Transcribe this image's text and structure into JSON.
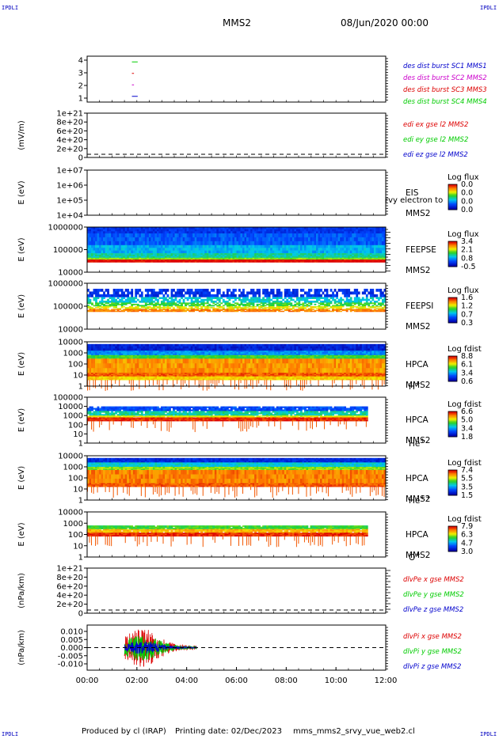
{
  "corner_label": "IPDLI",
  "header": {
    "spacecraft": "MMS2",
    "date_time": "08/Jun/2020 00:00"
  },
  "footer": {
    "produced_by": "Produced by cl (IRAP)",
    "printing_date": "Printing date: 02/Dec/2023",
    "script_name": "mms_mms2_srvy_vue_web2.cl"
  },
  "colors": {
    "series_blue": "#0000cc",
    "series_red": "#dd0000",
    "series_green": "#00cc00",
    "series_magenta": "#cc00cc",
    "label_blue": "#000099"
  },
  "chart_data": [
    {
      "type": "line",
      "title": "",
      "ylabel": "",
      "ylim": [
        0.5,
        4.5
      ],
      "yticks": [
        "4",
        "3",
        "2",
        "1"
      ],
      "legend": [
        {
          "text": "des dist burst SC1 MMS1",
          "color": "#0000cc"
        },
        {
          "text": "des dist burst SC2 MMS2",
          "color": "#cc00cc"
        },
        {
          "text": "des dist burst SC3 MMS3",
          "color": "#dd0000"
        },
        {
          "text": "des dist burst SC4 MMS4",
          "color": "#00cc00"
        }
      ],
      "series": [
        {
          "name": "des dist burst SC1 MMS1",
          "x": [
            1.8,
            2.0
          ],
          "y": [
            1,
            1
          ]
        },
        {
          "name": "des dist burst SC2 MMS2",
          "x": [
            1.8,
            1.85
          ],
          "y": [
            2,
            2
          ]
        },
        {
          "name": "des dist burst SC3 MMS3",
          "x": [
            1.8,
            1.85
          ],
          "y": [
            3,
            3
          ]
        },
        {
          "name": "des dist burst SC4 MMS4",
          "x": [
            1.8,
            2.0
          ],
          "y": [
            4,
            4
          ]
        }
      ]
    },
    {
      "type": "line",
      "ylabel": "(mV/m)",
      "yticks": [
        "1e+21",
        "8e+20",
        "6e+20",
        "4e+20",
        "2e+20",
        "0"
      ],
      "legend": [
        {
          "text": "edi ex gse l2 MMS2",
          "color": "#dd0000"
        },
        {
          "text": "edi ey gse l2 MMS2",
          "color": "#00cc00"
        },
        {
          "text": "edi ez gse l2 MMS2",
          "color": "#0000cc"
        }
      ],
      "series": []
    },
    {
      "type": "heatmap",
      "ylabel": "E (eV)",
      "yticks": [
        "1e+07",
        "1e+06",
        "1e+05",
        "1e+04"
      ],
      "instrument": "EIS",
      "spacecraft": "MMS2",
      "species": "",
      "overlay_text": "rvy electron to",
      "colorbar_title": "Log flux",
      "colorbar_ticks": [
        "0.0",
        "0.0",
        "0.0",
        "0.0"
      ]
    },
    {
      "type": "heatmap",
      "ylabel": "E (eV)",
      "yticks": [
        "1000000",
        "100000",
        "10000"
      ],
      "instrument": "FEEPSE",
      "spacecraft": "MMS2",
      "species": "",
      "colorbar_title": "Log flux",
      "colorbar_ticks": [
        "3.4",
        "2.1",
        "0.8",
        "-0.5"
      ]
    },
    {
      "type": "heatmap",
      "ylabel": "E (eV)",
      "yticks": [
        "1000000",
        "100000",
        "10000"
      ],
      "instrument": "FEEPSI",
      "spacecraft": "MMS2",
      "species": "",
      "colorbar_title": "Log flux",
      "colorbar_ticks": [
        "1.6",
        "1.2",
        "0.7",
        "0.3"
      ]
    },
    {
      "type": "heatmap",
      "ylabel": "E (eV)",
      "yticks": [
        "10000",
        "1000",
        "100",
        "10",
        "1"
      ],
      "instrument": "HPCA",
      "spacecraft": "MMS2",
      "species_base": "H",
      "species_sup": "+",
      "colorbar_title": "Log fdist",
      "colorbar_ticks": [
        "8.8",
        "6.1",
        "3.4",
        "0.6"
      ]
    },
    {
      "type": "heatmap",
      "ylabel": "E (eV)",
      "yticks": [
        "100000",
        "10000",
        "1000",
        "100",
        "10",
        "1"
      ],
      "instrument": "HPCA",
      "spacecraft": "MMS2",
      "species_base": "He",
      "species_sup": "+",
      "colorbar_title": "Log fdist",
      "colorbar_ticks": [
        "6.6",
        "5.0",
        "3.4",
        "1.8"
      ]
    },
    {
      "type": "heatmap",
      "ylabel": "E (eV)",
      "yticks": [
        "10000",
        "1000",
        "100",
        "10",
        "1"
      ],
      "instrument": "HPCA",
      "spacecraft": "MMS2",
      "species_base": "He",
      "species_sup": "++",
      "colorbar_title": "Log fdist",
      "colorbar_ticks": [
        "7.4",
        "5.5",
        "3.5",
        "1.5"
      ]
    },
    {
      "type": "heatmap",
      "ylabel": "E (eV)",
      "yticks": [
        "10000",
        "1000",
        "100",
        "10",
        "1"
      ],
      "instrument": "HPCA",
      "spacecraft": "MMS2",
      "species_base": "O",
      "species_sup": "+",
      "colorbar_title": "Log fdist",
      "colorbar_ticks": [
        "7.9",
        "6.3",
        "4.7",
        "3.0"
      ]
    },
    {
      "type": "line",
      "ylabel": "(nPa/km)",
      "yticks": [
        "1e+21",
        "8e+20",
        "6e+20",
        "4e+20",
        "2e+20",
        "0"
      ],
      "legend": [
        {
          "text": "dlvPe x gse MMS2",
          "color": "#dd0000"
        },
        {
          "text": "dlvPe y gse MMS2",
          "color": "#00cc00"
        },
        {
          "text": "dlvPe z gse MMS2",
          "color": "#0000cc"
        }
      ],
      "series": []
    },
    {
      "type": "line",
      "ylabel": "(nPa/km)",
      "ylim": [
        -0.014,
        0.014
      ],
      "yticks": [
        "0.010",
        "0.005",
        "0.000",
        "-0.005",
        "-0.010"
      ],
      "legend": [
        {
          "text": "dlvPi x gse MMS2",
          "color": "#dd0000"
        },
        {
          "text": "dlvPi y gse MMS2",
          "color": "#00cc00"
        },
        {
          "text": "dlvPi z gse MMS2",
          "color": "#0000cc"
        }
      ],
      "series": [
        {
          "name": "dlvPi x gse MMS2",
          "x_range_hours": [
            1.5,
            4.4
          ],
          "amplitude": 0.012
        },
        {
          "name": "dlvPi y gse MMS2",
          "x_range_hours": [
            1.5,
            4.4
          ],
          "amplitude": 0.008
        },
        {
          "name": "dlvPi z gse MMS2",
          "x_range_hours": [
            1.5,
            4.4
          ],
          "amplitude": 0.004
        }
      ]
    }
  ],
  "x_axis": {
    "ticks": [
      "00:00",
      "02:00",
      "04:00",
      "06:00",
      "08:00",
      "10:00",
      "12:00"
    ],
    "range_hours": [
      0,
      12
    ]
  }
}
